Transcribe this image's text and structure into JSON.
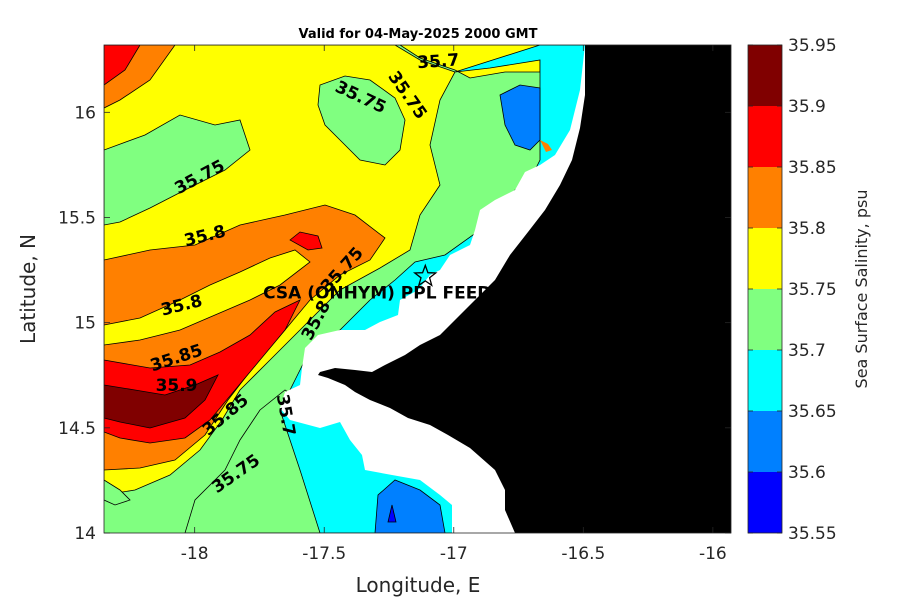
{
  "chart_data": {
    "type": "contour",
    "title": "Valid for 04-May-2025 2000 GMT",
    "xlabel": "Longitude, E",
    "ylabel": "Latitude, N",
    "xlim": [
      -18.35,
      -15.93
    ],
    "ylim": [
      14.0,
      16.32
    ],
    "x_ticks": [
      {
        "value": -18,
        "label": "-18"
      },
      {
        "value": -17.5,
        "label": "-17.5"
      },
      {
        "value": -17,
        "label": "-17"
      },
      {
        "value": -16.5,
        "label": "-16.5"
      },
      {
        "value": -16,
        "label": "-16"
      }
    ],
    "y_ticks": [
      {
        "value": 14,
        "label": "14"
      },
      {
        "value": 14.5,
        "label": "14.5"
      },
      {
        "value": 15,
        "label": "15"
      },
      {
        "value": 15.5,
        "label": "15.5"
      },
      {
        "value": 16,
        "label": "16"
      }
    ],
    "colorbar": {
      "label": "Sea Surface Salinity, psu",
      "levels": [
        35.55,
        35.6,
        35.65,
        35.7,
        35.75,
        35.8,
        35.85,
        35.9,
        35.95
      ],
      "level_labels": [
        "35.55",
        "35.6",
        "35.65",
        "35.7",
        "35.75",
        "35.8",
        "35.85",
        "35.9",
        "35.95"
      ],
      "colors": [
        "#0000ff",
        "#0080ff",
        "#00ffff",
        "#80ff80",
        "#ffff00",
        "#ff8000",
        "#ff0000",
        "#800000"
      ]
    },
    "contour_labels": [
      {
        "text": "35.7",
        "lon": -17.06,
        "lat": 16.24,
        "angle": -4
      },
      {
        "text": "35.75",
        "lon": -17.36,
        "lat": 16.07,
        "angle": 25
      },
      {
        "text": "35.75",
        "lon": -17.18,
        "lat": 16.08,
        "angle": 55
      },
      {
        "text": "35.75",
        "lon": -17.98,
        "lat": 15.69,
        "angle": -28
      },
      {
        "text": "35.8",
        "lon": -17.96,
        "lat": 15.41,
        "angle": -14
      },
      {
        "text": "35.75",
        "lon": -17.43,
        "lat": 15.25,
        "angle": -48
      },
      {
        "text": "35.8",
        "lon": -18.05,
        "lat": 15.08,
        "angle": -14
      },
      {
        "text": "35.8",
        "lon": -17.53,
        "lat": 15.01,
        "angle": -62
      },
      {
        "text": "35.85",
        "lon": -18.07,
        "lat": 14.83,
        "angle": -18
      },
      {
        "text": "35.9",
        "lon": -18.07,
        "lat": 14.7,
        "angle": 0
      },
      {
        "text": "35.85",
        "lon": -17.88,
        "lat": 14.56,
        "angle": -40
      },
      {
        "text": "35.7",
        "lon": -17.65,
        "lat": 14.56,
        "angle": 80
      },
      {
        "text": "35.75",
        "lon": -17.84,
        "lat": 14.28,
        "angle": -35
      }
    ],
    "station": {
      "name": "CSA (ONHYM) PPL FEED",
      "lon": -17.11,
      "lat": 15.22,
      "marker": "star"
    },
    "land_color": "#000000"
  }
}
